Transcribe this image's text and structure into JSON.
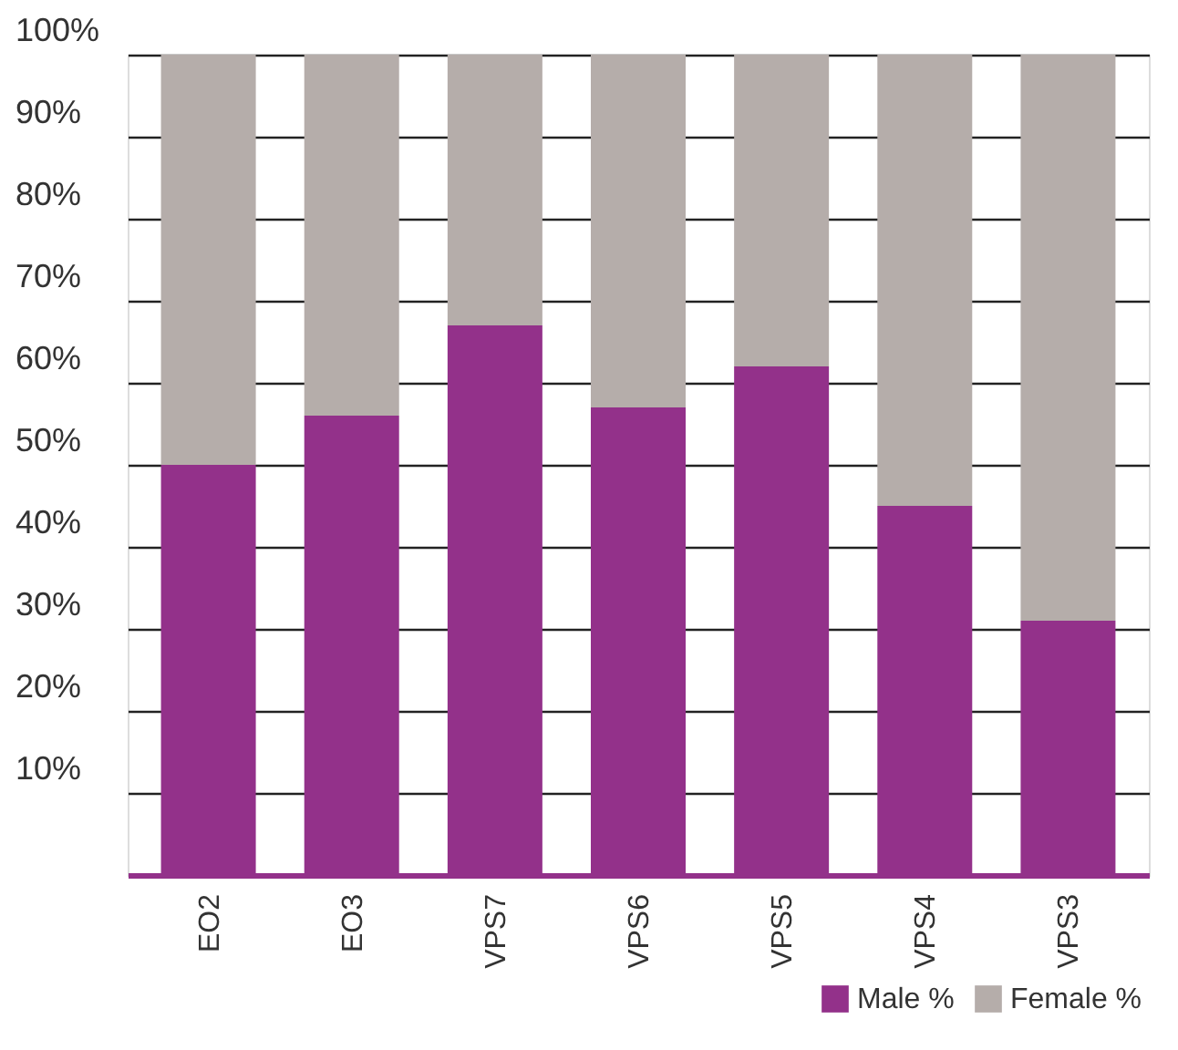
{
  "chart_data": {
    "type": "bar",
    "stacked": true,
    "categories": [
      "EO2",
      "EO3",
      "VPS7",
      "VPS6",
      "VPS5",
      "VPS4",
      "VPS3"
    ],
    "series": [
      {
        "name": "Male %",
        "color": "#93318a",
        "values": [
          50,
          56,
          67,
          57,
          62,
          45,
          31
        ]
      },
      {
        "name": "Female %",
        "color": "#b5adaa",
        "values": [
          50,
          44,
          33,
          43,
          38,
          55,
          69
        ]
      }
    ],
    "ylim": [
      0,
      100
    ],
    "yticks": [
      {
        "value": 0,
        "label": null
      },
      {
        "value": 10,
        "label": "10%"
      },
      {
        "value": 20,
        "label": "20%"
      },
      {
        "value": 30,
        "label": "30%"
      },
      {
        "value": 40,
        "label": "40%"
      },
      {
        "value": 50,
        "label": "50%"
      },
      {
        "value": 60,
        "label": "60%"
      },
      {
        "value": 70,
        "label": "70%"
      },
      {
        "value": 80,
        "label": "80%"
      },
      {
        "value": 90,
        "label": "90%"
      },
      {
        "value": 100,
        "label": "100%"
      }
    ],
    "grid": "y",
    "legend": "bottom right"
  }
}
